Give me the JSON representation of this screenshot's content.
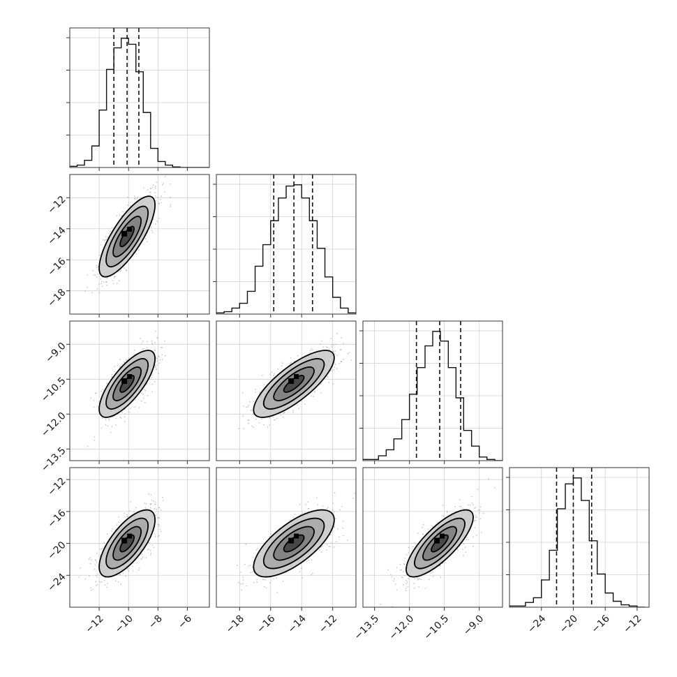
{
  "chart_data": {
    "type": "corner",
    "grid": true,
    "parameters": [
      {
        "range": [
          -14,
          -4.5
        ],
        "ticks": [
          -12,
          -10,
          -8,
          -6
        ],
        "tick_labels": [
          "−12",
          "−10",
          "−8",
          "−6"
        ],
        "quantiles": [
          -11.0,
          -10.1,
          -9.3
        ],
        "hist": {
          "edges": [
            -14,
            -13.5,
            -13,
            -12.5,
            -12,
            -11.5,
            -11,
            -10.5,
            -10,
            -9.5,
            -9,
            -8.5,
            -8,
            -7.5,
            -7,
            -6.5,
            -6,
            -5.5,
            -5,
            -4.5
          ],
          "counts": [
            1,
            2,
            6,
            18,
            48,
            82,
            100,
            108,
            103,
            80,
            46,
            16,
            5,
            2,
            0.5,
            0,
            0,
            0,
            0
          ]
        }
      },
      {
        "range": [
          -19.5,
          -10.5
        ],
        "ticks": [
          -18,
          -16,
          -14,
          -12
        ],
        "tick_labels": [
          "−18",
          "−16",
          "−14",
          "−12"
        ],
        "quantiles": [
          -15.8,
          -14.5,
          -13.3
        ],
        "hist": {
          "edges": [
            -19.5,
            -19,
            -18.5,
            -18,
            -17.5,
            -17,
            -16.5,
            -16,
            -15.5,
            -15,
            -14.5,
            -14,
            -13.5,
            -13,
            -12.5,
            -12,
            -11.5,
            -11,
            -10.5
          ],
          "counts": [
            1,
            2,
            5,
            9,
            19,
            40,
            58,
            78,
            97,
            107,
            108,
            97,
            78,
            55,
            31,
            14,
            5,
            1
          ]
        }
      },
      {
        "range": [
          -14.0,
          -8.0
        ],
        "ticks": [
          -13.5,
          -12.0,
          -10.5,
          -9.0
        ],
        "tick_labels": [
          "−13.5",
          "−12.0",
          "−10.5",
          "−9.0"
        ],
        "quantiles": [
          -11.7,
          -10.7,
          -9.8
        ],
        "hist": {
          "edges": [
            -14.0,
            -13.67,
            -13.33,
            -13.0,
            -12.67,
            -12.33,
            -12.0,
            -11.67,
            -11.33,
            -11.0,
            -10.67,
            -10.33,
            -10.0,
            -9.67,
            -9.33,
            -9.0,
            -8.67,
            -8.33,
            -8.0
          ],
          "counts": [
            1,
            1,
            4,
            9,
            18,
            34,
            55,
            77,
            95,
            107,
            99,
            77,
            52,
            25,
            12,
            3,
            1,
            0
          ]
        }
      },
      {
        "range": [
          -28,
          -10.5
        ],
        "ticks": [
          -24,
          -20,
          -16,
          -12
        ],
        "tick_labels": [
          "−24",
          "−20",
          "−16",
          "−12"
        ],
        "quantiles": [
          -22.1,
          -20.0,
          -17.7
        ],
        "hist": {
          "edges": [
            -28,
            -27,
            -26,
            -25,
            -24,
            -23,
            -22,
            -21,
            -20,
            -19,
            -18,
            -17,
            -16,
            -15,
            -14,
            -13,
            -12,
            -11
          ],
          "counts": [
            1,
            1,
            4,
            8,
            23,
            48,
            83,
            104,
            109,
            90,
            56,
            28,
            12,
            5,
            2,
            1,
            0
          ]
        }
      }
    ],
    "pairs": [
      {
        "row": 1,
        "col": 0,
        "mean": [
          -10.1,
          -14.5
        ],
        "sd": [
          0.95,
          1.3
        ],
        "rho": 0.78
      },
      {
        "row": 2,
        "col": 0,
        "mean": [
          -10.1,
          -10.7
        ],
        "sd": [
          0.95,
          0.72
        ],
        "rho": 0.75
      },
      {
        "row": 2,
        "col": 1,
        "mean": [
          -14.5,
          -10.7
        ],
        "sd": [
          1.3,
          0.72
        ],
        "rho": 0.78
      },
      {
        "row": 3,
        "col": 0,
        "mean": [
          -10.1,
          -20.0
        ],
        "sd": [
          0.95,
          2.1
        ],
        "rho": 0.7
      },
      {
        "row": 3,
        "col": 1,
        "mean": [
          -14.5,
          -20.0
        ],
        "sd": [
          1.3,
          2.1
        ],
        "rho": 0.7
      },
      {
        "row": 3,
        "col": 2,
        "mean": [
          -10.7,
          -20.0
        ],
        "sd": [
          0.72,
          2.1
        ],
        "rho": 0.78
      }
    ],
    "contour_levels_sigma": [
      0.5,
      1.0,
      1.5,
      2.0
    ]
  }
}
